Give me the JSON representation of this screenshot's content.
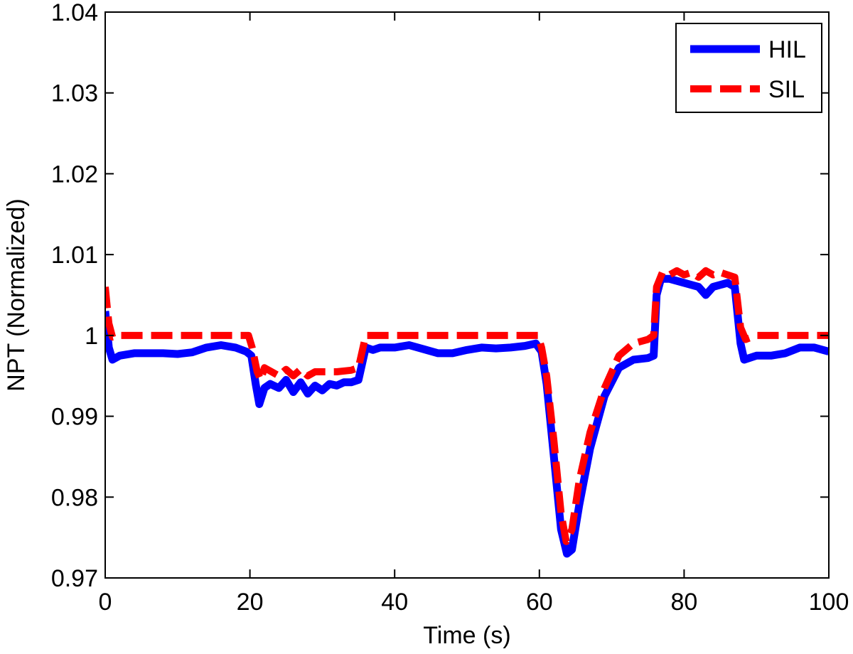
{
  "chart_data": {
    "type": "line",
    "title": "",
    "xlabel": "Time (s)",
    "ylabel": "NPT (Normalized)",
    "xlim": [
      0,
      100
    ],
    "ylim": [
      0.97,
      1.04
    ],
    "xticks": [
      0,
      20,
      40,
      60,
      80,
      100
    ],
    "xtick_labels": [
      "0",
      "20",
      "40",
      "60",
      "80",
      "100"
    ],
    "yticks": [
      0.97,
      0.98,
      0.99,
      1.0,
      1.01,
      1.02,
      1.03,
      1.04
    ],
    "ytick_labels": [
      "0.97",
      "0.98",
      "0.99",
      "1",
      "1.01",
      "1.02",
      "1.03",
      "1.04"
    ],
    "grid": false,
    "legend_position": "top-right",
    "series": [
      {
        "name": "HIL",
        "color": "#0000ff",
        "style": "solid",
        "points": [
          [
            0,
            1.003
          ],
          [
            0.5,
            0.9985
          ],
          [
            1.0,
            0.997
          ],
          [
            2,
            0.9975
          ],
          [
            4,
            0.9978
          ],
          [
            6,
            0.9978
          ],
          [
            8,
            0.9978
          ],
          [
            10,
            0.9977
          ],
          [
            12,
            0.9979
          ],
          [
            14,
            0.9985
          ],
          [
            16,
            0.9988
          ],
          [
            18,
            0.9985
          ],
          [
            19.5,
            0.998
          ],
          [
            20.2,
            0.9975
          ],
          [
            20.8,
            0.994
          ],
          [
            21.3,
            0.9915
          ],
          [
            22,
            0.9935
          ],
          [
            22.8,
            0.994
          ],
          [
            24,
            0.9935
          ],
          [
            25,
            0.9945
          ],
          [
            26,
            0.993
          ],
          [
            27,
            0.9942
          ],
          [
            28,
            0.9928
          ],
          [
            29,
            0.9938
          ],
          [
            30,
            0.9932
          ],
          [
            31,
            0.994
          ],
          [
            32,
            0.9938
          ],
          [
            33,
            0.9942
          ],
          [
            34,
            0.9942
          ],
          [
            35,
            0.9945
          ],
          [
            36,
            0.9985
          ],
          [
            37,
            0.9982
          ],
          [
            38,
            0.9985
          ],
          [
            40,
            0.9985
          ],
          [
            42,
            0.9988
          ],
          [
            44,
            0.9983
          ],
          [
            46,
            0.9978
          ],
          [
            48,
            0.9978
          ],
          [
            50,
            0.9982
          ],
          [
            52,
            0.9985
          ],
          [
            54,
            0.9984
          ],
          [
            56,
            0.9985
          ],
          [
            58,
            0.9987
          ],
          [
            59.5,
            0.999
          ],
          [
            60.3,
            0.998
          ],
          [
            61,
            0.994
          ],
          [
            62,
            0.985
          ],
          [
            63,
            0.976
          ],
          [
            63.8,
            0.973
          ],
          [
            64.5,
            0.9735
          ],
          [
            65.5,
            0.979
          ],
          [
            67,
            0.986
          ],
          [
            69,
            0.9925
          ],
          [
            71,
            0.996
          ],
          [
            73,
            0.997
          ],
          [
            75,
            0.9972
          ],
          [
            75.8,
            0.9975
          ],
          [
            76.2,
            1.005
          ],
          [
            76.8,
            1.007
          ],
          [
            78,
            1.007
          ],
          [
            80,
            1.0065
          ],
          [
            82,
            1.006
          ],
          [
            83,
            1.005
          ],
          [
            84,
            1.006
          ],
          [
            86,
            1.0065
          ],
          [
            87,
            1.006
          ],
          [
            87.8,
            0.999
          ],
          [
            88.3,
            0.997
          ],
          [
            90,
            0.9975
          ],
          [
            92,
            0.9975
          ],
          [
            94,
            0.9978
          ],
          [
            96,
            0.9985
          ],
          [
            98,
            0.9985
          ],
          [
            100,
            0.998
          ]
        ]
      },
      {
        "name": "SIL",
        "color": "#ff0000",
        "style": "dashed",
        "points": [
          [
            0,
            1.006
          ],
          [
            0.5,
            1.0015
          ],
          [
            1.0,
            0.9998
          ],
          [
            2,
            1.0
          ],
          [
            10,
            1.0
          ],
          [
            19.8,
            1.0
          ],
          [
            20.3,
            0.9985
          ],
          [
            21,
            0.9955
          ],
          [
            21.5,
            0.9945
          ],
          [
            22,
            0.996
          ],
          [
            23,
            0.9955
          ],
          [
            24,
            0.995
          ],
          [
            25,
            0.9958
          ],
          [
            26,
            0.995
          ],
          [
            27,
            0.9958
          ],
          [
            28,
            0.995
          ],
          [
            29,
            0.9955
          ],
          [
            30,
            0.9955
          ],
          [
            32,
            0.9955
          ],
          [
            34,
            0.9957
          ],
          [
            35,
            0.996
          ],
          [
            36,
            1.0
          ],
          [
            40,
            1.0
          ],
          [
            45,
            1.0
          ],
          [
            50,
            1.0
          ],
          [
            55,
            1.0
          ],
          [
            59.8,
            1.0
          ],
          [
            60.3,
            0.9985
          ],
          [
            61,
            0.995
          ],
          [
            62,
            0.987
          ],
          [
            63,
            0.978
          ],
          [
            63.7,
            0.9745
          ],
          [
            64.5,
            0.976
          ],
          [
            65.5,
            0.982
          ],
          [
            67,
            0.988
          ],
          [
            69,
            0.9935
          ],
          [
            71,
            0.9975
          ],
          [
            73,
            0.999
          ],
          [
            75,
            0.9995
          ],
          [
            75.8,
            1.0
          ],
          [
            76.2,
            1.006
          ],
          [
            77,
            1.0078
          ],
          [
            78,
            1.0075
          ],
          [
            79,
            1.008
          ],
          [
            80,
            1.0075
          ],
          [
            81,
            1.0078
          ],
          [
            82,
            1.0072
          ],
          [
            83,
            1.008
          ],
          [
            84,
            1.0075
          ],
          [
            85,
            1.0078
          ],
          [
            86,
            1.0075
          ],
          [
            87,
            1.0072
          ],
          [
            87.8,
            1.001
          ],
          [
            88.5,
            0.9995
          ],
          [
            90,
            1.0
          ],
          [
            95,
            1.0
          ],
          [
            100,
            1.0
          ]
        ]
      }
    ]
  }
}
